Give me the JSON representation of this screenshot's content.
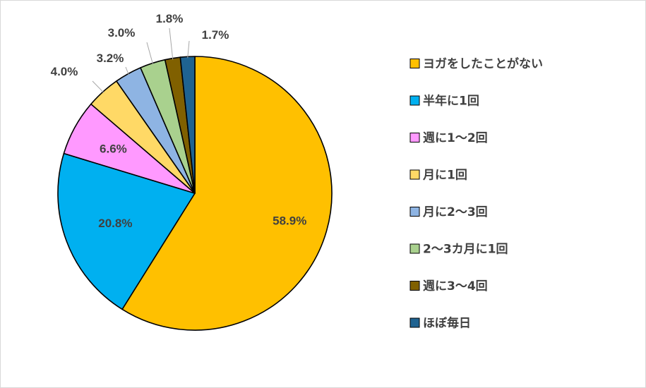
{
  "chart_data": {
    "type": "pie",
    "categories": [
      "ヨガをしたことがない",
      "半年に1回",
      "週に1～2回",
      "月に1回",
      "月に2～3回",
      "2～3カ月に1回",
      "週に3～4回",
      "ほぼ毎日"
    ],
    "values": [
      58.9,
      20.8,
      6.6,
      4.0,
      3.2,
      3.0,
      1.8,
      1.7
    ],
    "labels": [
      "58.9%",
      "20.8%",
      "6.6%",
      "4.0%",
      "3.2%",
      "3.0%",
      "1.8%",
      "1.7%"
    ],
    "colors": [
      "#FFC000",
      "#00B0F0",
      "#FF99FF",
      "#FFD966",
      "#8EB4E3",
      "#A9D18E",
      "#806000",
      "#1F6391"
    ],
    "start_angle_deg": 0,
    "direction": "clockwise",
    "legend_position": "right"
  }
}
